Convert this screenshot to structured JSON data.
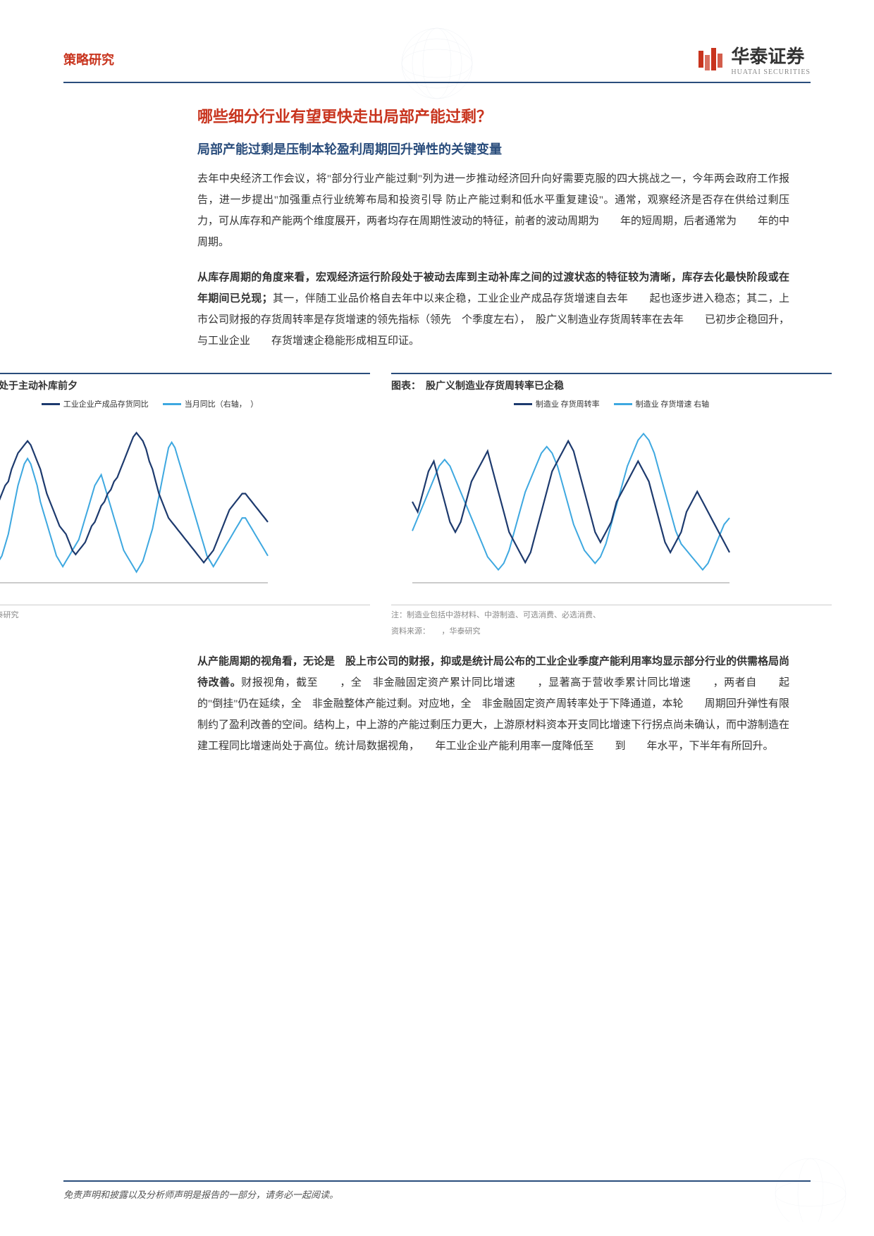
{
  "header": {
    "category": "策略研究",
    "logo_main": "华泰证券",
    "logo_sub": "HUATAI SECURITIES"
  },
  "titles": {
    "main": "哪些细分行业有望更快走出局部产能过剩？",
    "sub": "局部产能过剩是压制本轮盈利周期回升弹性的关键变量"
  },
  "paragraphs": {
    "p1": "去年中央经济工作会议，将\"部分行业产能过剩\"列为进一步推动经济回升向好需要克服的四大挑战之一，今年两会政府工作报告，进一步提出\"加强重点行业统筹布局和投资引导 防止产能过剩和低水平重复建设\"。通常，观察经济是否存在供给过剩压力，可从库存和产能两个维度展开，两者均存在周期性波动的特征，前者的波动周期为　　年的短周期，后者通常为　　年的中周期。",
    "p2_bold": "从库存周期的角度来看，宏观经济运行阶段处于被动去库到主动补库之间的过渡状态的特征较为清晰，库存去化最快阶段或在　　年期间已兑现；",
    "p2_rest": "其一，伴随工业品价格自去年中以来企稳，工业企业产成品存货增速自去年　　起也逐步进入稳态；其二，上市公司财报的存货周转率是存货增速的领先指标（领先　个季度左右），　股广义制造业存货周转率在去年　　已初步企稳回升，与工业企业　　存货增速企稳能形成相互印证。",
    "p3_bold": "从产能周期的视角看，无论是　股上市公司的财报，抑或是统计局公布的工业企业季度产能利用率均显示部分行业的供需格局尚待改善。",
    "p3_rest": "财报视角，截至　　，全　非金融固定资产累计同比增速　　，显著高于营收季累计同比增速　　，两者自　　起的\"倒挂\"仍在延续，全　非金融整体产能过剩。对应地，全　非金融固定资产周转率处于下降通道，本轮　　周期回升弹性有限制约了盈利改善的空间。结构上，中上游的产能过剩压力更大，上游原材料资本开支同比增速下行拐点尚未确认，而中游制造在建工程同比增速尚处于高位。统计局数据视角，　　年工业企业产能利用率一度降低至　　到　　年水平，下半年有所回升。"
  },
  "chart1": {
    "title": "图表：工业企业处于主动补库前夕",
    "legend": [
      "工业企业产成品存货同比",
      "当月同比（右轴，　）"
    ],
    "colors": {
      "line1": "#1d3a6e",
      "line2": "#3ea8e0"
    },
    "footnote": "资料来源：　　，华泰研究",
    "series1": [
      24,
      22,
      20,
      18,
      17,
      14,
      13,
      10,
      8,
      5,
      3,
      2,
      3,
      5,
      8,
      10,
      12,
      14,
      15,
      18,
      20,
      22,
      23,
      24,
      25,
      24,
      22,
      20,
      18,
      15,
      12,
      10,
      8,
      6,
      4,
      3,
      2,
      0,
      -2,
      -3,
      -2,
      -1,
      0,
      2,
      4,
      5,
      7,
      9,
      10,
      12,
      13,
      15,
      16,
      18,
      20,
      22,
      24,
      26,
      27,
      26,
      25,
      23,
      20,
      18,
      15,
      12,
      10,
      8,
      6,
      5,
      4,
      3,
      2,
      1,
      0,
      -1,
      -2,
      -3,
      -4,
      -5,
      -4,
      -3,
      -2,
      0,
      2,
      4,
      6,
      8,
      9,
      10,
      11,
      12,
      12,
      11,
      10,
      9,
      8,
      7,
      6,
      5
    ],
    "series2": [
      10,
      11,
      12,
      10,
      8,
      6,
      4,
      2,
      0,
      -2,
      -3,
      -4,
      -5,
      -6,
      -7,
      -6,
      -5,
      -3,
      -1,
      2,
      5,
      8,
      10,
      12,
      13,
      12,
      10,
      8,
      5,
      3,
      1,
      -1,
      -3,
      -5,
      -6,
      -7,
      -6,
      -5,
      -4,
      -3,
      -2,
      0,
      2,
      4,
      6,
      8,
      9,
      10,
      8,
      6,
      4,
      2,
      0,
      -2,
      -4,
      -5,
      -6,
      -7,
      -8,
      -7,
      -6,
      -4,
      -2,
      0,
      3,
      6,
      9,
      12,
      15,
      16,
      15,
      13,
      11,
      9,
      7,
      5,
      3,
      1,
      -1,
      -3,
      -5,
      -6,
      -7,
      -6,
      -5,
      -4,
      -3,
      -2,
      -1,
      0,
      1,
      2,
      2,
      1,
      0,
      -1,
      -2,
      -3,
      -4,
      -5
    ],
    "y_min": -10,
    "y_max": 30,
    "y2_min": -10,
    "y2_max": 20
  },
  "chart2": {
    "title": "图表：　股广义制造业存货周转率已企稳",
    "legend": [
      "制造业 存货周转率",
      "制造业 存货增速 右轴"
    ],
    "colors": {
      "line1": "#1d3a6e",
      "line2": "#3ea8e0"
    },
    "footnote1": "注：制造业包括中游材料、中游制造、可选消费、必选消费、",
    "footnote2": "资料来源：　　，华泰研究",
    "series1": [
      3.2,
      3.1,
      3.3,
      3.5,
      3.6,
      3.4,
      3.2,
      3.0,
      2.9,
      3.0,
      3.2,
      3.4,
      3.5,
      3.6,
      3.7,
      3.5,
      3.3,
      3.1,
      2.9,
      2.8,
      2.7,
      2.6,
      2.7,
      2.9,
      3.1,
      3.3,
      3.5,
      3.6,
      3.7,
      3.8,
      3.7,
      3.5,
      3.3,
      3.1,
      2.9,
      2.8,
      2.9,
      3.0,
      3.2,
      3.3,
      3.4,
      3.5,
      3.6,
      3.5,
      3.4,
      3.2,
      3.0,
      2.8,
      2.7,
      2.8,
      2.9,
      3.1,
      3.2,
      3.3,
      3.2,
      3.1,
      3.0,
      2.9,
      2.8,
      2.7
    ],
    "series2": [
      8,
      10,
      12,
      14,
      16,
      18,
      19,
      18,
      16,
      14,
      12,
      10,
      8,
      6,
      4,
      3,
      2,
      3,
      5,
      8,
      11,
      14,
      16,
      18,
      20,
      21,
      20,
      18,
      15,
      12,
      9,
      7,
      5,
      4,
      3,
      4,
      6,
      9,
      12,
      15,
      18,
      20,
      22,
      23,
      22,
      20,
      17,
      14,
      11,
      8,
      6,
      5,
      4,
      3,
      2,
      3,
      5,
      7,
      9,
      10
    ],
    "y_min": 2.4,
    "y_max": 4.0,
    "y2_min": 0,
    "y2_max": 25
  },
  "footer": {
    "disclaimer": "免责声明和披露以及分析师声明是报告的一部分，请务必一起阅读。"
  },
  "colors": {
    "brand_red": "#c8341e",
    "brand_blue": "#2a4d7c"
  }
}
